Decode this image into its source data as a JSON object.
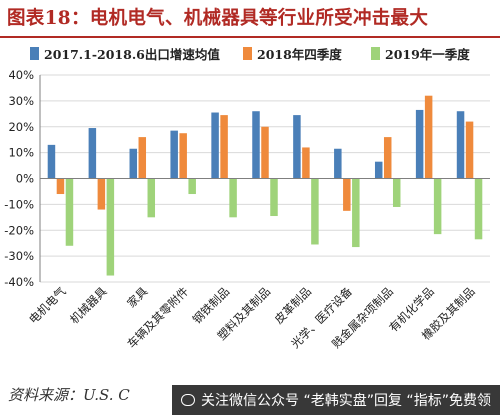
{
  "title": "图表18：电机电气、机械器具等行业所受冲击最大",
  "source": "资料来源：U.S. C",
  "watermark": "关注微信公众号 “老韩实盘”回复 “指标”免费领",
  "colors": {
    "title": "#b12a24",
    "grid": "#d9d9d9",
    "axis": "#7f7f7f",
    "text": "#222222"
  },
  "chart_data": {
    "type": "bar",
    "categories": [
      "电机电气",
      "机械器具",
      "家具",
      "车辆及其零附件",
      "钢铁制品",
      "塑料及其制品",
      "皮革制品",
      "光学、医疗设备",
      "贱金属杂项制品",
      "有机化学品",
      "橡胶及其制品"
    ],
    "series": [
      {
        "name": "2017.1-2018.6出口增速均值",
        "color": "#4a7fb8",
        "values": [
          13,
          19.5,
          11.5,
          18.5,
          25.5,
          26,
          24.5,
          11.5,
          6.5,
          26.5,
          26
        ]
      },
      {
        "name": "2018年四季度",
        "color": "#ef8a3c",
        "values": [
          -6,
          -12,
          16,
          17.5,
          24.5,
          20,
          12,
          -12.5,
          16,
          32,
          22
        ]
      },
      {
        "name": "2019年一季度",
        "color": "#9fd37a",
        "values": [
          -26,
          -37.5,
          -15,
          -6,
          -15,
          -14.5,
          -25.5,
          -26.5,
          -11,
          -21.5,
          -23.5
        ]
      }
    ],
    "ylim": [
      -40,
      40
    ],
    "yticks": [
      -40,
      -30,
      -20,
      -10,
      0,
      10,
      20,
      30,
      40
    ],
    "ytick_labels": [
      "-40%",
      "-30%",
      "-20%",
      "-10%",
      "0%",
      "10%",
      "20%",
      "30%",
      "40%"
    ],
    "grid": true,
    "legend": "top"
  }
}
